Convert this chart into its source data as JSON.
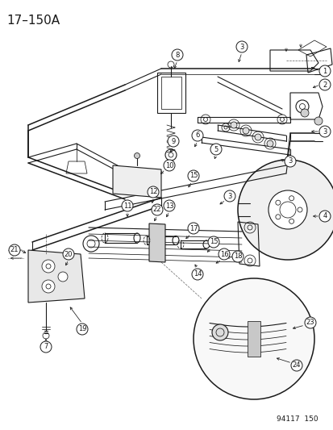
{
  "title": "17–150A",
  "figure_id": "94117  150",
  "bg": "#ffffff",
  "lc": "#1a1a1a",
  "title_fontsize": 11,
  "label_fontsize": 6,
  "fig_id_fontsize": 6.5
}
